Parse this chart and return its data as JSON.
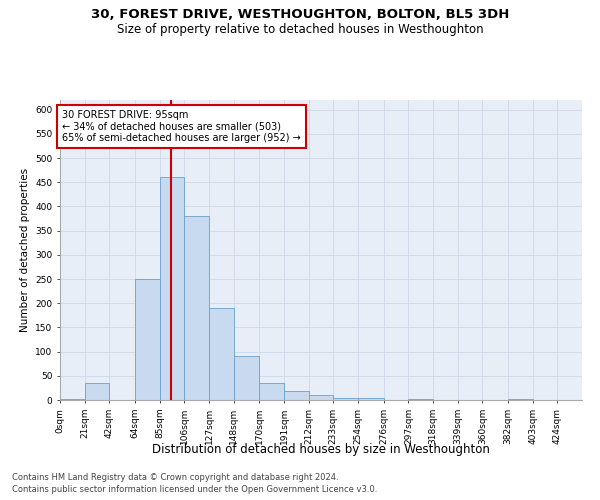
{
  "title": "30, FOREST DRIVE, WESTHOUGHTON, BOLTON, BL5 3DH",
  "subtitle": "Size of property relative to detached houses in Westhoughton",
  "xlabel": "Distribution of detached houses by size in Westhoughton",
  "ylabel": "Number of detached properties",
  "footnote1": "Contains HM Land Registry data © Crown copyright and database right 2024.",
  "footnote2": "Contains public sector information licensed under the Open Government Licence v3.0.",
  "bar_edges": [
    0,
    21,
    42,
    64,
    85,
    106,
    127,
    148,
    170,
    191,
    212,
    233,
    254,
    276,
    297,
    318,
    339,
    360,
    382,
    403,
    424,
    445
  ],
  "bar_heights": [
    2,
    35,
    0,
    250,
    460,
    380,
    190,
    90,
    35,
    18,
    10,
    5,
    5,
    0,
    3,
    0,
    0,
    0,
    3,
    0,
    0
  ],
  "bar_color": "#c8daf0",
  "bar_edge_color": "#6aa0d0",
  "grid_color": "#cdd8ea",
  "background_color": "#e8eef8",
  "annotation_box_color": "#ffffff",
  "annotation_box_edge": "#cc0000",
  "red_line_x": 95,
  "red_line_color": "#cc0000",
  "annotation_line1": "30 FOREST DRIVE: 95sqm",
  "annotation_line2": "← 34% of detached houses are smaller (503)",
  "annotation_line3": "65% of semi-detached houses are larger (952) →",
  "ylim": [
    0,
    620
  ],
  "yticks": [
    0,
    50,
    100,
    150,
    200,
    250,
    300,
    350,
    400,
    450,
    500,
    550,
    600
  ],
  "xtick_labels": [
    "0sqm",
    "21sqm",
    "42sqm",
    "64sqm",
    "85sqm",
    "106sqm",
    "127sqm",
    "148sqm",
    "170sqm",
    "191sqm",
    "212sqm",
    "233sqm",
    "254sqm",
    "276sqm",
    "297sqm",
    "318sqm",
    "339sqm",
    "360sqm",
    "382sqm",
    "403sqm",
    "424sqm"
  ],
  "title_fontsize": 9.5,
  "subtitle_fontsize": 8.5,
  "ylabel_fontsize": 7.5,
  "xlabel_fontsize": 8.5,
  "tick_fontsize": 6.5,
  "footnote_fontsize": 6.0
}
